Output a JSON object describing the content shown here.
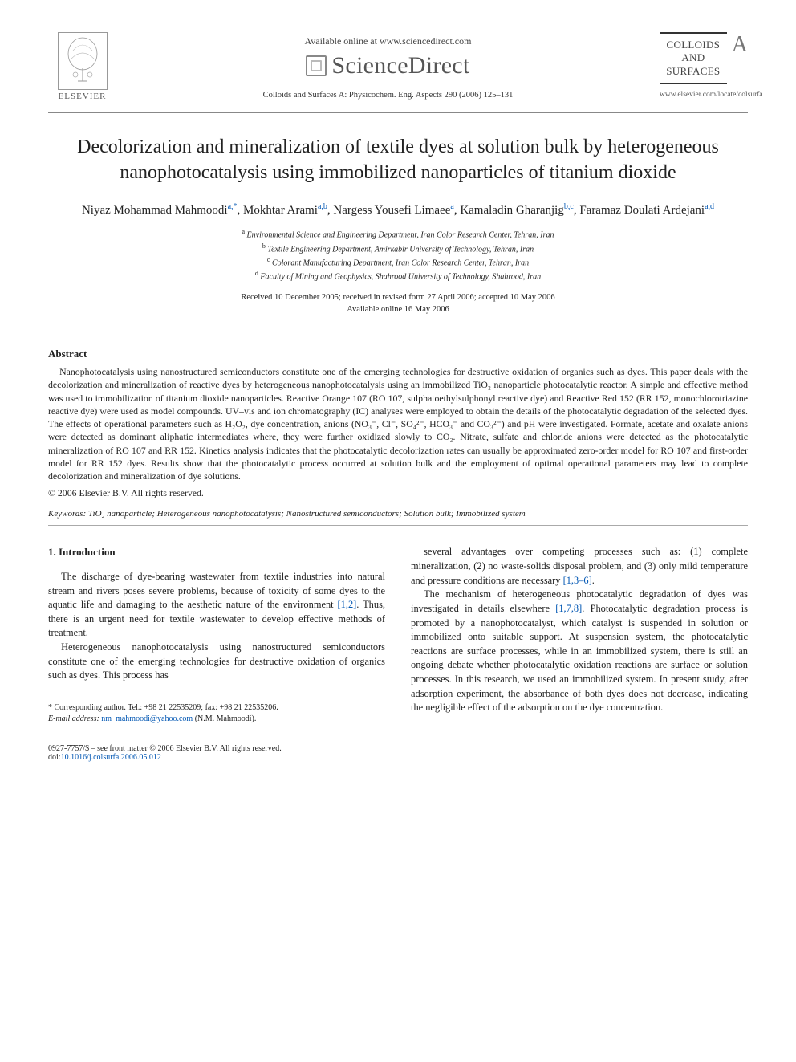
{
  "header": {
    "elsevier_label": "ELSEVIER",
    "available_text": "Available online at www.sciencedirect.com",
    "sciencedirect_label": "ScienceDirect",
    "journal_reference": "Colloids and Surfaces A: Physicochem. Eng. Aspects 290 (2006) 125–131",
    "journal_logo_line1": "COLLOIDS",
    "journal_logo_line2": "AND",
    "journal_logo_line3": "SURFACES",
    "journal_logo_letter": "A",
    "journal_url": "www.elsevier.com/locate/colsurfa"
  },
  "title": "Decolorization and mineralization of textile dyes at solution bulk by heterogeneous nanophotocatalysis using immobilized nanoparticles of titanium dioxide",
  "authors": [
    {
      "name": "Niyaz Mohammad Mahmoodi",
      "marks": "a,*"
    },
    {
      "name": "Mokhtar Arami",
      "marks": "a,b"
    },
    {
      "name": "Nargess Yousefi Limaee",
      "marks": "a"
    },
    {
      "name": "Kamaladin Gharanjig",
      "marks": "b,c"
    },
    {
      "name": "Faramaz Doulati Ardejani",
      "marks": "a,d"
    }
  ],
  "affiliations": [
    {
      "mark": "a",
      "text": "Environmental Science and Engineering Department, Iran Color Research Center, Tehran, Iran"
    },
    {
      "mark": "b",
      "text": "Textile Engineering Department, Amirkabir University of Technology, Tehran, Iran"
    },
    {
      "mark": "c",
      "text": "Colorant Manufacturing Department, Iran Color Research Center, Tehran, Iran"
    },
    {
      "mark": "d",
      "text": "Faculty of Mining and Geophysics, Shahrood University of Technology, Shahrood, Iran"
    }
  ],
  "dates": {
    "line1": "Received 10 December 2005; received in revised form 27 April 2006; accepted 10 May 2006",
    "line2": "Available online 16 May 2006"
  },
  "abstract": {
    "heading": "Abstract",
    "body": "Nanophotocatalysis using nanostructured semiconductors constitute one of the emerging technologies for destructive oxidation of organics such as dyes. This paper deals with the decolorization and mineralization of reactive dyes by heterogeneous nanophotocatalysis using an immobilized TiO₂ nanoparticle photocatalytic reactor. A simple and effective method was used to immobilization of titanium dioxide nanoparticles. Reactive Orange 107 (RO 107, sulphatoethylsulphonyl reactive dye) and Reactive Red 152 (RR 152, monochlorotriazine reactive dye) were used as model compounds. UV–vis and ion chromatography (IC) analyses were employed to obtain the details of the photocatalytic degradation of the selected dyes. The effects of operational parameters such as H₂O₂, dye concentration, anions (NO₃⁻, Cl⁻, SO₄²⁻, HCO₃⁻ and CO₃²⁻) and pH were investigated. Formate, acetate and oxalate anions were detected as dominant aliphatic intermediates where, they were further oxidized slowly to CO₂. Nitrate, sulfate and chloride anions were detected as the photocatalytic mineralization of RO 107 and RR 152. Kinetics analysis indicates that the photocatalytic decolorization rates can usually be approximated zero-order model for RO 107 and first-order model for RR 152 dyes. Results show that the photocatalytic process occurred at solution bulk and the employment of optimal operational parameters may lead to complete decolorization and mineralization of dye solutions.",
    "copyright": "© 2006 Elsevier B.V. All rights reserved."
  },
  "keywords": {
    "label": "Keywords:",
    "text": "TiO₂ nanoparticle; Heterogeneous nanophotocatalysis; Nanostructured semiconductors; Solution bulk; Immobilized system"
  },
  "section1": {
    "heading": "1. Introduction",
    "left_paras": [
      "The discharge of dye-bearing wastewater from textile industries into natural stream and rivers poses severe problems, because of toxicity of some dyes to the aquatic life and damaging to the aesthetic nature of the environment [1,2]. Thus, there is an urgent need for textile wastewater to develop effective methods of treatment.",
      "Heterogeneous nanophotocatalysis using nanostructured semiconductors constitute one of the emerging technologies for destructive oxidation of organics such as dyes. This process has"
    ],
    "right_paras": [
      "several advantages over competing processes such as: (1) complete mineralization, (2) no waste-solids disposal problem, and (3) only mild temperature and pressure conditions are necessary [1,3–6].",
      "The mechanism of heterogeneous photocatalytic degradation of dyes was investigated in details elsewhere [1,7,8]. Photocatalytic degradation process is promoted by a nanophotocatalyst, which catalyst is suspended in solution or immobilized onto suitable support. At suspension system, the photocatalytic reactions are surface processes, while in an immobilized system, there is still an ongoing debate whether photocatalytic oxidation reactions are surface or solution processes. In this research, we used an immobilized system. In present study, after adsorption experiment, the absorbance of both dyes does not decrease, indicating the negligible effect of the adsorption on the dye concentration."
    ]
  },
  "footnote": {
    "corresponding": "* Corresponding author. Tel.: +98 21 22535209; fax: +98 21 22535206.",
    "email_label": "E-mail address:",
    "email": "nm_mahmoodi@yahoo.com",
    "email_suffix": "(N.M. Mahmoodi)."
  },
  "bottom": {
    "issn_line": "0927-7757/$ – see front matter © 2006 Elsevier B.V. All rights reserved.",
    "doi_label": "doi:",
    "doi": "10.1016/j.colsurfa.2006.05.012"
  },
  "colors": {
    "link": "#0056b3",
    "text": "#222222",
    "rule": "#aaaaaa"
  }
}
